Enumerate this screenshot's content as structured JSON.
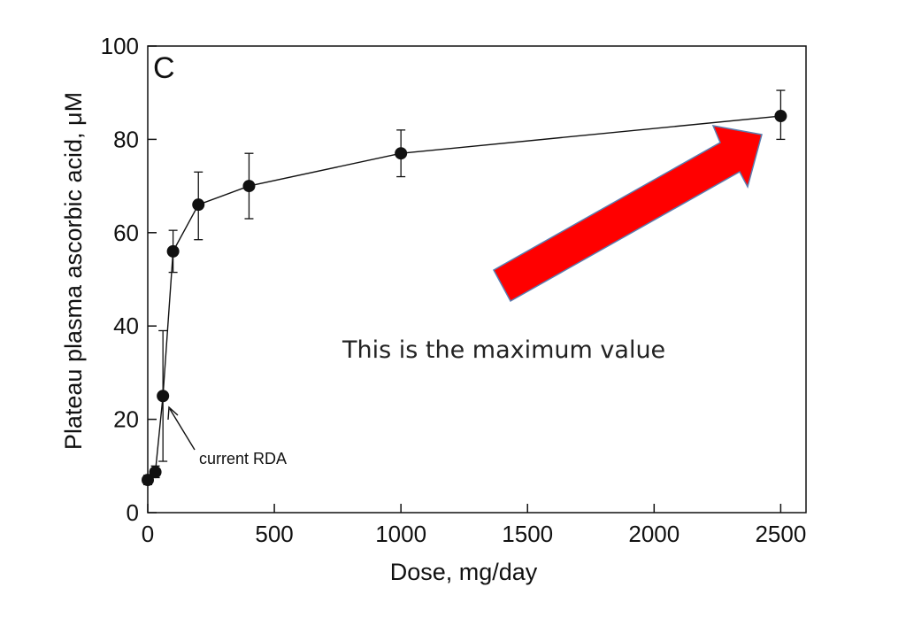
{
  "chart_data": {
    "type": "scatter",
    "panel_label": "C",
    "xlabel": "Dose, mg/day",
    "ylabel": "Plateau plasma ascorbic acid, μM",
    "xlim": [
      0,
      2600
    ],
    "ylim": [
      0,
      100
    ],
    "x_ticks": [
      0,
      500,
      1000,
      1500,
      2000,
      2500
    ],
    "y_ticks": [
      0,
      20,
      40,
      60,
      80,
      100
    ],
    "x_tick_labels": [
      "0",
      "500",
      "1000",
      "1500",
      "2000",
      "2500"
    ],
    "y_tick_labels": [
      "0",
      "20",
      "40",
      "60",
      "80",
      "100"
    ],
    "grid": false,
    "connected_line": true,
    "series": [
      {
        "points": [
          {
            "x": 0,
            "y": 7,
            "err_low": 6,
            "err_high": 8
          },
          {
            "x": 30,
            "y": 8.7,
            "err_low": 7.5,
            "err_high": 10
          },
          {
            "x": 60,
            "y": 25,
            "err_low": 11,
            "err_high": 39
          },
          {
            "x": 100,
            "y": 56,
            "err_low": 51.5,
            "err_high": 60.5
          },
          {
            "x": 200,
            "y": 66,
            "err_low": 58.5,
            "err_high": 73
          },
          {
            "x": 400,
            "y": 70,
            "err_low": 63,
            "err_high": 77
          },
          {
            "x": 1000,
            "y": 77,
            "err_low": 72,
            "err_high": 82
          },
          {
            "x": 2500,
            "y": 85,
            "err_low": 80,
            "err_high": 90.5
          }
        ]
      }
    ],
    "annotations": [
      {
        "text": "current RDA",
        "x": 60,
        "y": 25
      }
    ],
    "callout": {
      "text": "This is the maximum value",
      "arrow_color": "#ff0000",
      "arrow_target": {
        "x": 2500,
        "y": 85
      }
    }
  }
}
